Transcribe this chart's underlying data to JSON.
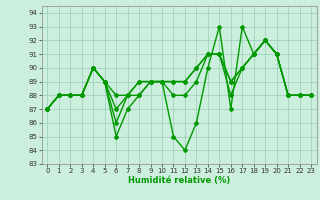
{
  "xlabel": "Humidité relative (%)",
  "background_color": "#cceedd",
  "grid_color": "#99ccbb",
  "line_color": "#009900",
  "marker": "D",
  "markersize": 2.0,
  "linewidth": 1.0,
  "xlim": [
    -0.5,
    23.5
  ],
  "ylim": [
    83,
    94.5
  ],
  "yticks": [
    83,
    84,
    85,
    86,
    87,
    88,
    89,
    90,
    91,
    92,
    93,
    94
  ],
  "xticks": [
    0,
    1,
    2,
    3,
    4,
    5,
    6,
    7,
    8,
    9,
    10,
    11,
    12,
    13,
    14,
    15,
    16,
    17,
    18,
    19,
    20,
    21,
    22,
    23
  ],
  "series": [
    [
      87,
      88,
      88,
      88,
      90,
      89,
      85,
      87,
      88,
      89,
      89,
      85,
      84,
      86,
      90,
      93,
      87,
      93,
      91,
      92,
      91,
      88,
      88,
      88
    ],
    [
      87,
      88,
      88,
      88,
      90,
      89,
      86,
      88,
      88,
      89,
      89,
      88,
      88,
      89,
      91,
      91,
      88,
      90,
      91,
      92,
      91,
      88,
      88,
      88
    ],
    [
      87,
      88,
      88,
      88,
      90,
      89,
      87,
      88,
      89,
      89,
      89,
      89,
      89,
      90,
      91,
      91,
      89,
      90,
      91,
      92,
      91,
      88,
      88,
      88
    ],
    [
      87,
      88,
      88,
      88,
      90,
      89,
      88,
      88,
      89,
      89,
      89,
      89,
      89,
      90,
      91,
      91,
      89,
      90,
      91,
      92,
      91,
      88,
      88,
      88
    ]
  ]
}
